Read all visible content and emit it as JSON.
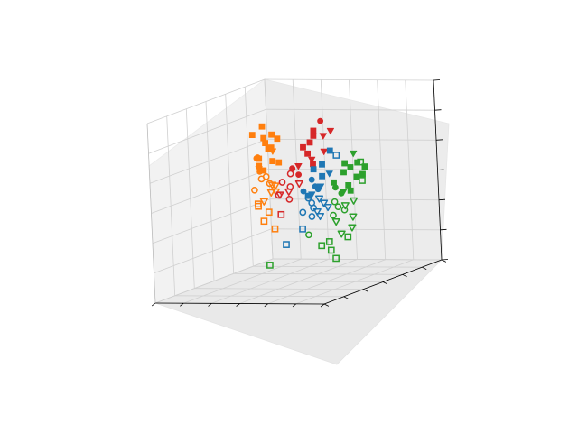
{
  "chart_data": {
    "type": "scatter",
    "projection": "3d",
    "title": "",
    "xlabel": "",
    "ylabel": "",
    "zlabel": "",
    "tick_labels_visible": false,
    "grid": true,
    "legend": "none",
    "xlim": [
      0,
      10
    ],
    "ylim": [
      0,
      10
    ],
    "zlim": [
      0,
      10
    ],
    "colors": {
      "blue": "#1f77b4",
      "orange": "#ff7f0e",
      "green": "#2ca02c",
      "red": "#d62728",
      "pane": "#f2f2f2",
      "grid": "#d0d0d0",
      "axis": "#000000"
    },
    "series": [
      {
        "name": "orange",
        "color": "#ff7f0e",
        "points": [
          {
            "m": "s",
            "f": 1,
            "x": 1.2,
            "y": 2.1,
            "z": 7.9
          },
          {
            "m": "s",
            "f": 1,
            "x": 1.4,
            "y": 2.3,
            "z": 7.3
          },
          {
            "m": "s",
            "f": 1,
            "x": 1.7,
            "y": 2.6,
            "z": 7.1
          },
          {
            "m": "s",
            "f": 1,
            "x": 1.1,
            "y": 2.8,
            "z": 7.6
          },
          {
            "m": "s",
            "f": 1,
            "x": 1.6,
            "y": 1.9,
            "z": 7.4
          },
          {
            "m": "s",
            "f": 1,
            "x": 1.9,
            "y": 2.4,
            "z": 6.8
          },
          {
            "m": "s",
            "f": 1,
            "x": 1.3,
            "y": 1.8,
            "z": 6.6
          },
          {
            "m": "s",
            "f": 1,
            "x": 2.0,
            "y": 2.0,
            "z": 7.2
          },
          {
            "m": "s",
            "f": 1,
            "x": 1.5,
            "y": 2.9,
            "z": 6.3
          },
          {
            "m": "s",
            "f": 1,
            "x": 1.8,
            "y": 2.2,
            "z": 6.0
          },
          {
            "m": "s",
            "f": 1,
            "x": 1.2,
            "y": 2.5,
            "z": 5.8
          },
          {
            "m": "s",
            "f": 1,
            "x": 1.6,
            "y": 2.7,
            "z": 5.6
          },
          {
            "m": "s",
            "f": 1,
            "x": 2.1,
            "y": 2.1,
            "z": 5.9
          },
          {
            "m": "o",
            "f": 1,
            "x": 1.0,
            "y": 2.4,
            "z": 6.2
          },
          {
            "m": "o",
            "f": 1,
            "x": 1.5,
            "y": 3.0,
            "z": 6.4
          },
          {
            "m": "o",
            "f": 1,
            "x": 1.3,
            "y": 2.6,
            "z": 5.5
          },
          {
            "m": "v",
            "f": 1,
            "x": 1.7,
            "y": 2.0,
            "z": 6.5
          },
          {
            "m": "v",
            "f": 1,
            "x": 1.4,
            "y": 2.8,
            "z": 5.7
          },
          {
            "m": "o",
            "f": 0,
            "x": 1.1,
            "y": 2.2,
            "z": 5.0
          },
          {
            "m": "o",
            "f": 0,
            "x": 1.6,
            "y": 2.5,
            "z": 5.2
          },
          {
            "m": "o",
            "f": 0,
            "x": 2.0,
            "y": 2.8,
            "z": 4.9
          },
          {
            "m": "o",
            "f": 0,
            "x": 1.3,
            "y": 3.1,
            "z": 4.6
          },
          {
            "m": "v",
            "f": 0,
            "x": 1.8,
            "y": 2.3,
            "z": 4.7
          },
          {
            "m": "v",
            "f": 0,
            "x": 2.2,
            "y": 2.6,
            "z": 4.4
          },
          {
            "m": "v",
            "f": 0,
            "x": 1.5,
            "y": 2.0,
            "z": 4.2
          },
          {
            "m": "v",
            "f": 0,
            "x": 2.4,
            "y": 2.9,
            "z": 4.8
          },
          {
            "m": "v",
            "f": 0,
            "x": 1.9,
            "y": 3.2,
            "z": 4.0
          },
          {
            "m": "s",
            "f": 0,
            "x": 1.2,
            "y": 2.7,
            "z": 3.6
          },
          {
            "m": "s",
            "f": 0,
            "x": 1.6,
            "y": 2.4,
            "z": 3.2
          },
          {
            "m": "s",
            "f": 0,
            "x": 1.0,
            "y": 2.0,
            "z": 2.6
          },
          {
            "m": "s",
            "f": 0,
            "x": 1.7,
            "y": 2.1,
            "z": 2.2
          },
          {
            "m": "s",
            "f": 0,
            "x": 1.4,
            "y": 3.0,
            "z": 3.8
          }
        ]
      },
      {
        "name": "red",
        "color": "#d62728",
        "points": [
          {
            "m": "o",
            "f": 1,
            "x": 4.6,
            "y": 2.0,
            "z": 8.2
          },
          {
            "m": "s",
            "f": 1,
            "x": 4.3,
            "y": 2.2,
            "z": 7.7
          },
          {
            "m": "s",
            "f": 1,
            "x": 4.5,
            "y": 2.5,
            "z": 7.5
          },
          {
            "m": "s",
            "f": 1,
            "x": 4.2,
            "y": 2.4,
            "z": 7.1
          },
          {
            "m": "s",
            "f": 1,
            "x": 4.0,
            "y": 2.7,
            "z": 6.9
          },
          {
            "m": "s",
            "f": 1,
            "x": 4.4,
            "y": 2.9,
            "z": 6.6
          },
          {
            "m": "v",
            "f": 1,
            "x": 4.8,
            "y": 2.1,
            "z": 7.4
          },
          {
            "m": "v",
            "f": 1,
            "x": 5.6,
            "y": 2.6,
            "z": 7.8
          },
          {
            "m": "v",
            "f": 1,
            "x": 5.3,
            "y": 2.8,
            "z": 6.7
          },
          {
            "m": "v",
            "f": 1,
            "x": 4.7,
            "y": 3.0,
            "z": 6.3
          },
          {
            "m": "v",
            "f": 1,
            "x": 4.1,
            "y": 3.3,
            "z": 6.0
          },
          {
            "m": "s",
            "f": 1,
            "x": 4.9,
            "y": 3.2,
            "z": 6.1
          },
          {
            "m": "o",
            "f": 1,
            "x": 3.8,
            "y": 3.4,
            "z": 5.9
          },
          {
            "m": "o",
            "f": 1,
            "x": 4.3,
            "y": 3.6,
            "z": 5.6
          },
          {
            "m": "o",
            "f": 1,
            "x": 3.6,
            "y": 3.1,
            "z": 5.8
          },
          {
            "m": "o",
            "f": 0,
            "x": 3.4,
            "y": 3.0,
            "z": 5.5
          },
          {
            "m": "o",
            "f": 0,
            "x": 3.1,
            "y": 3.3,
            "z": 5.1
          },
          {
            "m": "o",
            "f": 0,
            "x": 3.7,
            "y": 3.5,
            "z": 4.9
          },
          {
            "m": "o",
            "f": 0,
            "x": 3.2,
            "y": 3.8,
            "z": 4.5
          },
          {
            "m": "o",
            "f": 0,
            "x": 3.9,
            "y": 3.9,
            "z": 4.3
          },
          {
            "m": "v",
            "f": 0,
            "x": 3.5,
            "y": 4.1,
            "z": 4.6
          },
          {
            "m": "v",
            "f": 0,
            "x": 4.1,
            "y": 4.2,
            "z": 4.8
          },
          {
            "m": "v",
            "f": 0,
            "x": 4.6,
            "y": 4.0,
            "z": 5.2
          },
          {
            "m": "s",
            "f": 0,
            "x": 3.8,
            "y": 4.5,
            "z": 3.6
          }
        ]
      },
      {
        "name": "blue",
        "color": "#1f77b4",
        "points": [
          {
            "m": "s",
            "f": 1,
            "x": 5.8,
            "y": 3.0,
            "z": 6.8
          },
          {
            "m": "s",
            "f": 1,
            "x": 5.5,
            "y": 3.3,
            "z": 6.1
          },
          {
            "m": "s",
            "f": 1,
            "x": 5.2,
            "y": 3.6,
            "z": 5.9
          },
          {
            "m": "s",
            "f": 1,
            "x": 5.9,
            "y": 3.9,
            "z": 5.6
          },
          {
            "m": "o",
            "f": 1,
            "x": 5.0,
            "y": 3.5,
            "z": 5.3
          },
          {
            "m": "o",
            "f": 1,
            "x": 5.4,
            "y": 3.8,
            "z": 5.0
          },
          {
            "m": "o",
            "f": 1,
            "x": 5.7,
            "y": 4.0,
            "z": 4.9
          },
          {
            "m": "v",
            "f": 1,
            "x": 6.2,
            "y": 3.7,
            "z": 5.7
          },
          {
            "m": "v",
            "f": 1,
            "x": 6.0,
            "y": 4.2,
            "z": 5.1
          },
          {
            "m": "v",
            "f": 1,
            "x": 5.6,
            "y": 4.4,
            "z": 4.7
          },
          {
            "m": "s",
            "f": 1,
            "x": 5.3,
            "y": 4.3,
            "z": 4.6
          },
          {
            "m": "o",
            "f": 1,
            "x": 4.9,
            "y": 4.1,
            "z": 4.8
          },
          {
            "m": "s",
            "f": 0,
            "x": 6.3,
            "y": 3.2,
            "z": 6.6
          },
          {
            "m": "o",
            "f": 0,
            "x": 5.1,
            "y": 4.0,
            "z": 4.4
          },
          {
            "m": "o",
            "f": 0,
            "x": 5.5,
            "y": 4.3,
            "z": 4.2
          },
          {
            "m": "o",
            "f": 0,
            "x": 5.8,
            "y": 4.6,
            "z": 4.0
          },
          {
            "m": "o",
            "f": 0,
            "x": 5.3,
            "y": 4.8,
            "z": 3.8
          },
          {
            "m": "o",
            "f": 0,
            "x": 5.9,
            "y": 4.9,
            "z": 3.6
          },
          {
            "m": "v",
            "f": 0,
            "x": 6.1,
            "y": 4.5,
            "z": 4.5
          },
          {
            "m": "v",
            "f": 0,
            "x": 6.5,
            "y": 4.7,
            "z": 4.3
          },
          {
            "m": "v",
            "f": 0,
            "x": 6.3,
            "y": 5.0,
            "z": 3.9
          },
          {
            "m": "v",
            "f": 0,
            "x": 6.8,
            "y": 4.8,
            "z": 4.1
          },
          {
            "m": "v",
            "f": 0,
            "x": 6.6,
            "y": 5.2,
            "z": 3.7
          },
          {
            "m": "s",
            "f": 0,
            "x": 5.6,
            "y": 5.3,
            "z": 3.0
          },
          {
            "m": "s",
            "f": 0,
            "x": 4.8,
            "y": 5.6,
            "z": 2.2
          }
        ]
      },
      {
        "name": "green",
        "color": "#2ca02c",
        "points": [
          {
            "m": "v",
            "f": 1,
            "x": 7.6,
            "y": 3.6,
            "z": 6.8
          },
          {
            "m": "s",
            "f": 1,
            "x": 7.2,
            "y": 3.8,
            "z": 6.3
          },
          {
            "m": "s",
            "f": 1,
            "x": 7.6,
            "y": 3.9,
            "z": 6.1
          },
          {
            "m": "s",
            "f": 1,
            "x": 8.1,
            "y": 4.0,
            "z": 6.4
          },
          {
            "m": "s",
            "f": 1,
            "x": 7.4,
            "y": 4.2,
            "z": 5.9
          },
          {
            "m": "s",
            "f": 1,
            "x": 8.3,
            "y": 4.4,
            "z": 5.7
          },
          {
            "m": "s",
            "f": 1,
            "x": 8.6,
            "y": 4.1,
            "z": 6.2
          },
          {
            "m": "s",
            "f": 1,
            "x": 8.8,
            "y": 4.6,
            "z": 5.9
          },
          {
            "m": "s",
            "f": 1,
            "x": 8.0,
            "y": 4.7,
            "z": 5.3
          },
          {
            "m": "s",
            "f": 1,
            "x": 7.0,
            "y": 4.5,
            "z": 5.4
          },
          {
            "m": "o",
            "f": 1,
            "x": 7.3,
            "y": 4.8,
            "z": 5.2
          },
          {
            "m": "o",
            "f": 1,
            "x": 7.7,
            "y": 4.9,
            "z": 4.9
          },
          {
            "m": "v",
            "f": 1,
            "x": 7.9,
            "y": 5.0,
            "z": 5.0
          },
          {
            "m": "s",
            "f": 1,
            "x": 8.4,
            "y": 5.1,
            "z": 5.1
          },
          {
            "m": "s",
            "f": 0,
            "x": 8.5,
            "y": 4.3,
            "z": 6.5
          },
          {
            "m": "s",
            "f": 0,
            "x": 8.9,
            "y": 4.8,
            "z": 5.6
          },
          {
            "m": "o",
            "f": 0,
            "x": 7.5,
            "y": 5.2,
            "z": 4.5
          },
          {
            "m": "o",
            "f": 0,
            "x": 7.9,
            "y": 5.5,
            "z": 4.3
          },
          {
            "m": "o",
            "f": 0,
            "x": 8.2,
            "y": 5.4,
            "z": 4.1
          },
          {
            "m": "o",
            "f": 0,
            "x": 7.8,
            "y": 5.8,
            "z": 3.9
          },
          {
            "m": "v",
            "f": 0,
            "x": 8.7,
            "y": 5.3,
            "z": 4.6
          },
          {
            "m": "v",
            "f": 0,
            "x": 8.4,
            "y": 5.6,
            "z": 4.4
          },
          {
            "m": "v",
            "f": 0,
            "x": 8.9,
            "y": 5.7,
            "z": 3.8
          },
          {
            "m": "v",
            "f": 0,
            "x": 8.1,
            "y": 6.0,
            "z": 3.6
          },
          {
            "m": "v",
            "f": 0,
            "x": 9.1,
            "y": 6.1,
            "z": 3.3
          },
          {
            "m": "v",
            "f": 0,
            "x": 8.6,
            "y": 6.3,
            "z": 3.0
          },
          {
            "m": "s",
            "f": 0,
            "x": 8.0,
            "y": 6.5,
            "z": 2.6
          },
          {
            "m": "s",
            "f": 0,
            "x": 7.6,
            "y": 6.6,
            "z": 2.4
          },
          {
            "m": "s",
            "f": 0,
            "x": 8.3,
            "y": 6.8,
            "z": 2.2
          },
          {
            "m": "s",
            "f": 0,
            "x": 8.7,
            "y": 7.0,
            "z": 1.8
          },
          {
            "m": "s",
            "f": 0,
            "x": 8.9,
            "y": 6.2,
            "z": 2.8
          },
          {
            "m": "o",
            "f": 0,
            "x": 6.3,
            "y": 5.8,
            "z": 2.8
          },
          {
            "m": "s",
            "f": 0,
            "x": 4.2,
            "y": 6.2,
            "z": 1.2
          }
        ]
      }
    ]
  }
}
